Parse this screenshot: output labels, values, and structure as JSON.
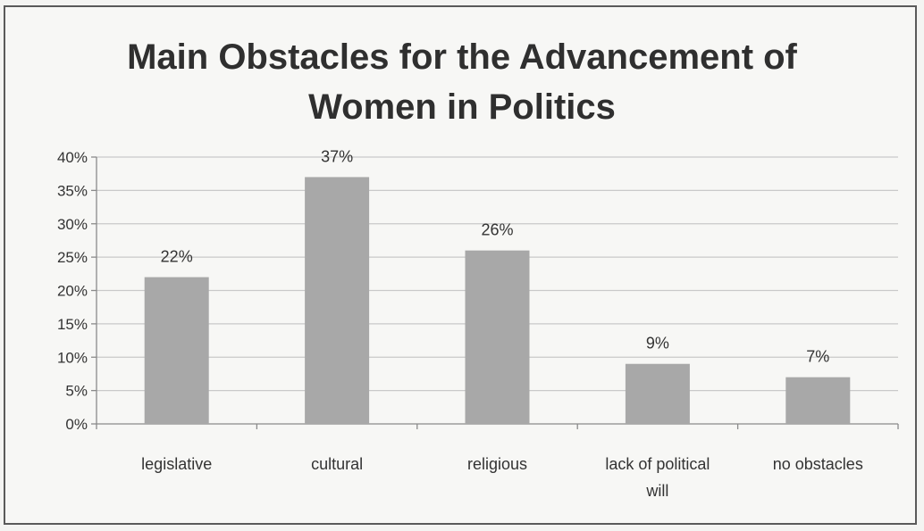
{
  "chart_data": {
    "type": "bar",
    "title_lines": [
      "Main Obstacles for the Advancement of",
      "Women in Politics"
    ],
    "categories": [
      "legislative",
      "cultural",
      "religious",
      "lack of political will",
      "no obstacles"
    ],
    "category_lines": [
      [
        "legislative"
      ],
      [
        "cultural"
      ],
      [
        "religious"
      ],
      [
        "lack of political",
        "will"
      ],
      [
        "no obstacles"
      ]
    ],
    "values": [
      22,
      37,
      26,
      9,
      7
    ],
    "value_labels": [
      "22%",
      "37%",
      "26%",
      "9%",
      "7%"
    ],
    "ylim": [
      0,
      40
    ],
    "yticks": [
      "0%",
      "5%",
      "10%",
      "15%",
      "20%",
      "25%",
      "30%",
      "35%",
      "40%"
    ],
    "grid": true,
    "bar_color": "#a8a8a8"
  }
}
